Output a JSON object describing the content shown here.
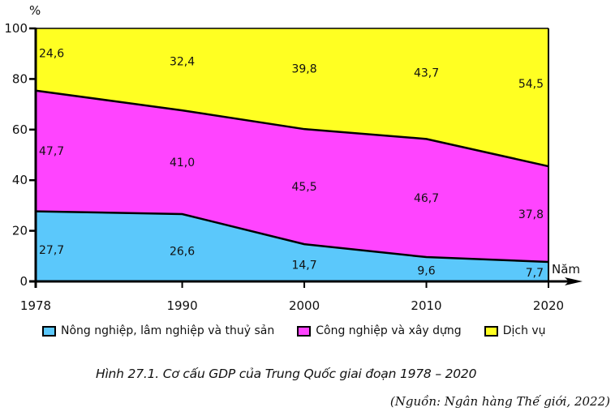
{
  "chart_data": {
    "type": "area",
    "stacked": true,
    "title": "Hình 27.1. Cơ cấu GDP của Trung Quốc giai đoạn 1978 – 2020",
    "source": "(Nguồn: Ngân hàng Thế giới, 2022)",
    "xlabel": "Năm",
    "ylabel": "%",
    "x": [
      1978,
      1990,
      2000,
      2010,
      2020
    ],
    "x_tick_labels": [
      "1978",
      "1990",
      "2000",
      "2010",
      "2020"
    ],
    "xlim": [
      1978,
      2020
    ],
    "ylim": [
      0,
      100
    ],
    "y_ticks": [
      0,
      20,
      40,
      60,
      80,
      100
    ],
    "grid": false,
    "legend_position": "bottom",
    "series": [
      {
        "name": "Nông nghiệp, lâm nghiệp và thuỷ sản",
        "color": "#5bc8fb",
        "values": [
          27.7,
          26.6,
          14.7,
          9.6,
          7.7
        ],
        "labels": [
          "27,7",
          "26,6",
          "14,7",
          "9,6",
          "7,7"
        ]
      },
      {
        "name": "Công nghiệp và xây dựng",
        "color": "#ff44ff",
        "values": [
          47.7,
          41.0,
          45.5,
          46.7,
          37.8
        ],
        "labels": [
          "47,7",
          "41,0",
          "45,5",
          "46,7",
          "37,8"
        ]
      },
      {
        "name": "Dịch vụ",
        "color": "#ffff22",
        "values": [
          24.6,
          32.4,
          39.8,
          43.7,
          54.5
        ],
        "labels": [
          "24,6",
          "32,4",
          "39,8",
          "43,7",
          "54,5"
        ]
      }
    ]
  }
}
